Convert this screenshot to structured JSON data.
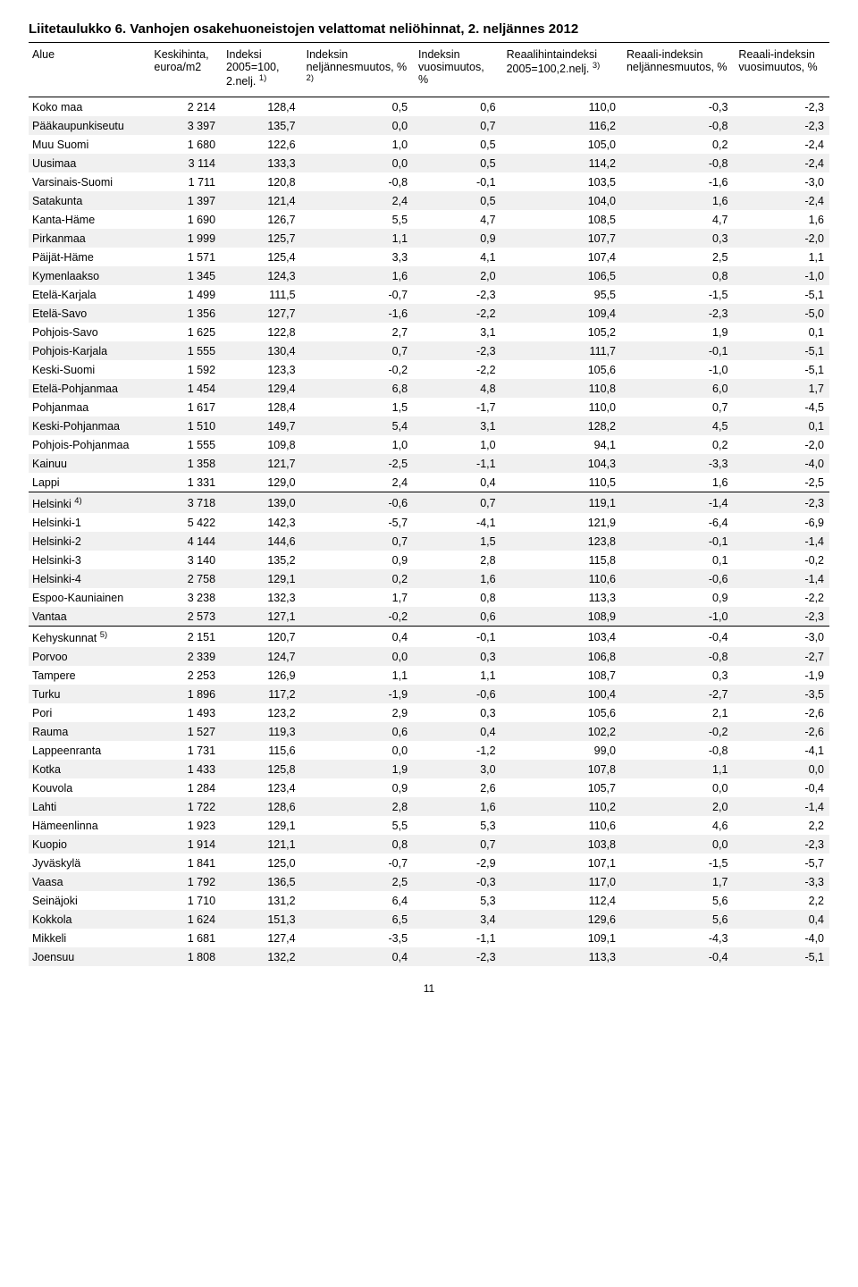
{
  "title": "Liitetaulukko 6. Vanhojen osakehuoneistojen velattomat neliöhinnat, 2. neljännes 2012",
  "headers": [
    "Alue",
    "Keskihinta, euroa/m2",
    "Indeksi 2005=100, 2.nelj. <sup>1)</sup>",
    "Indeksin neljännesmuutos, % <sup>2)</sup>",
    "Indeksin vuosimuutos, %",
    "Reaalihintaindeksi 2005=100,2.nelj. <sup>3)</sup>",
    "Reaali-indeksin neljännesmuutos, %",
    "Reaali-indeksin vuosimuutos, %"
  ],
  "sections": [
    {
      "rows": [
        [
          "Koko maa",
          "2 214",
          "128,4",
          "0,5",
          "0,6",
          "110,0",
          "-0,3",
          "-2,3"
        ],
        [
          "Pääkaupunkiseutu",
          "3 397",
          "135,7",
          "0,0",
          "0,7",
          "116,2",
          "-0,8",
          "-2,3"
        ],
        [
          "Muu Suomi",
          "1 680",
          "122,6",
          "1,0",
          "0,5",
          "105,0",
          "0,2",
          "-2,4"
        ],
        [
          "Uusimaa",
          "3 114",
          "133,3",
          "0,0",
          "0,5",
          "114,2",
          "-0,8",
          "-2,4"
        ],
        [
          "Varsinais-Suomi",
          "1 711",
          "120,8",
          "-0,8",
          "-0,1",
          "103,5",
          "-1,6",
          "-3,0"
        ],
        [
          "Satakunta",
          "1 397",
          "121,4",
          "2,4",
          "0,5",
          "104,0",
          "1,6",
          "-2,4"
        ],
        [
          "Kanta-Häme",
          "1 690",
          "126,7",
          "5,5",
          "4,7",
          "108,5",
          "4,7",
          "1,6"
        ],
        [
          "Pirkanmaa",
          "1 999",
          "125,7",
          "1,1",
          "0,9",
          "107,7",
          "0,3",
          "-2,0"
        ],
        [
          "Päijät-Häme",
          "1 571",
          "125,4",
          "3,3",
          "4,1",
          "107,4",
          "2,5",
          "1,1"
        ],
        [
          "Kymenlaakso",
          "1 345",
          "124,3",
          "1,6",
          "2,0",
          "106,5",
          "0,8",
          "-1,0"
        ],
        [
          "Etelä-Karjala",
          "1 499",
          "111,5",
          "-0,7",
          "-2,3",
          "95,5",
          "-1,5",
          "-5,1"
        ],
        [
          "Etelä-Savo",
          "1 356",
          "127,7",
          "-1,6",
          "-2,2",
          "109,4",
          "-2,3",
          "-5,0"
        ],
        [
          "Pohjois-Savo",
          "1 625",
          "122,8",
          "2,7",
          "3,1",
          "105,2",
          "1,9",
          "0,1"
        ],
        [
          "Pohjois-Karjala",
          "1 555",
          "130,4",
          "0,7",
          "-2,3",
          "111,7",
          "-0,1",
          "-5,1"
        ],
        [
          "Keski-Suomi",
          "1 592",
          "123,3",
          "-0,2",
          "-2,2",
          "105,6",
          "-1,0",
          "-5,1"
        ],
        [
          "Etelä-Pohjanmaa",
          "1 454",
          "129,4",
          "6,8",
          "4,8",
          "110,8",
          "6,0",
          "1,7"
        ],
        [
          "Pohjanmaa",
          "1 617",
          "128,4",
          "1,5",
          "-1,7",
          "110,0",
          "0,7",
          "-4,5"
        ],
        [
          "Keski-Pohjanmaa",
          "1 510",
          "149,7",
          "5,4",
          "3,1",
          "128,2",
          "4,5",
          "0,1"
        ],
        [
          "Pohjois-Pohjanmaa",
          "1 555",
          "109,8",
          "1,0",
          "1,0",
          "94,1",
          "0,2",
          "-2,0"
        ],
        [
          "Kainuu",
          "1 358",
          "121,7",
          "-2,5",
          "-1,1",
          "104,3",
          "-3,3",
          "-4,0"
        ],
        [
          "Lappi",
          "1 331",
          "129,0",
          "2,4",
          "0,4",
          "110,5",
          "1,6",
          "-2,5"
        ]
      ]
    },
    {
      "rows": [
        [
          "Helsinki <sup>4)</sup>",
          "3 718",
          "139,0",
          "-0,6",
          "0,7",
          "119,1",
          "-1,4",
          "-2,3"
        ],
        [
          "Helsinki-1",
          "5 422",
          "142,3",
          "-5,7",
          "-4,1",
          "121,9",
          "-6,4",
          "-6,9"
        ],
        [
          "Helsinki-2",
          "4 144",
          "144,6",
          "0,7",
          "1,5",
          "123,8",
          "-0,1",
          "-1,4"
        ],
        [
          "Helsinki-3",
          "3 140",
          "135,2",
          "0,9",
          "2,8",
          "115,8",
          "0,1",
          "-0,2"
        ],
        [
          "Helsinki-4",
          "2 758",
          "129,1",
          "0,2",
          "1,6",
          "110,6",
          "-0,6",
          "-1,4"
        ],
        [
          "Espoo-Kauniainen",
          "3 238",
          "132,3",
          "1,7",
          "0,8",
          "113,3",
          "0,9",
          "-2,2"
        ],
        [
          "Vantaa",
          "2 573",
          "127,1",
          "-0,2",
          "0,6",
          "108,9",
          "-1,0",
          "-2,3"
        ]
      ]
    },
    {
      "rows": [
        [
          "Kehyskunnat <sup>5)</sup>",
          "2 151",
          "120,7",
          "0,4",
          "-0,1",
          "103,4",
          "-0,4",
          "-3,0"
        ],
        [
          "Porvoo",
          "2 339",
          "124,7",
          "0,0",
          "0,3",
          "106,8",
          "-0,8",
          "-2,7"
        ],
        [
          "Tampere",
          "2 253",
          "126,9",
          "1,1",
          "1,1",
          "108,7",
          "0,3",
          "-1,9"
        ],
        [
          "Turku",
          "1 896",
          "117,2",
          "-1,9",
          "-0,6",
          "100,4",
          "-2,7",
          "-3,5"
        ],
        [
          "Pori",
          "1 493",
          "123,2",
          "2,9",
          "0,3",
          "105,6",
          "2,1",
          "-2,6"
        ],
        [
          "Rauma",
          "1 527",
          "119,3",
          "0,6",
          "0,4",
          "102,2",
          "-0,2",
          "-2,6"
        ],
        [
          "Lappeenranta",
          "1 731",
          "115,6",
          "0,0",
          "-1,2",
          "99,0",
          "-0,8",
          "-4,1"
        ],
        [
          "Kotka",
          "1 433",
          "125,8",
          "1,9",
          "3,0",
          "107,8",
          "1,1",
          "0,0"
        ],
        [
          "Kouvola",
          "1 284",
          "123,4",
          "0,9",
          "2,6",
          "105,7",
          "0,0",
          "-0,4"
        ],
        [
          "Lahti",
          "1 722",
          "128,6",
          "2,8",
          "1,6",
          "110,2",
          "2,0",
          "-1,4"
        ],
        [
          "Hämeenlinna",
          "1 923",
          "129,1",
          "5,5",
          "5,3",
          "110,6",
          "4,6",
          "2,2"
        ],
        [
          "Kuopio",
          "1 914",
          "121,1",
          "0,8",
          "0,7",
          "103,8",
          "0,0",
          "-2,3"
        ],
        [
          "Jyväskylä",
          "1 841",
          "125,0",
          "-0,7",
          "-2,9",
          "107,1",
          "-1,5",
          "-5,7"
        ],
        [
          "Vaasa",
          "1 792",
          "136,5",
          "2,5",
          "-0,3",
          "117,0",
          "1,7",
          "-3,3"
        ],
        [
          "Seinäjoki",
          "1 710",
          "131,2",
          "6,4",
          "5,3",
          "112,4",
          "5,6",
          "2,2"
        ],
        [
          "Kokkola",
          "1 624",
          "151,3",
          "6,5",
          "3,4",
          "129,6",
          "5,6",
          "0,4"
        ],
        [
          "Mikkeli",
          "1 681",
          "127,4",
          "-3,5",
          "-1,1",
          "109,1",
          "-4,3",
          "-4,0"
        ],
        [
          "Joensuu",
          "1 808",
          "132,2",
          "0,4",
          "-2,3",
          "113,3",
          "-0,4",
          "-5,1"
        ]
      ]
    }
  ],
  "pageNumber": "11"
}
